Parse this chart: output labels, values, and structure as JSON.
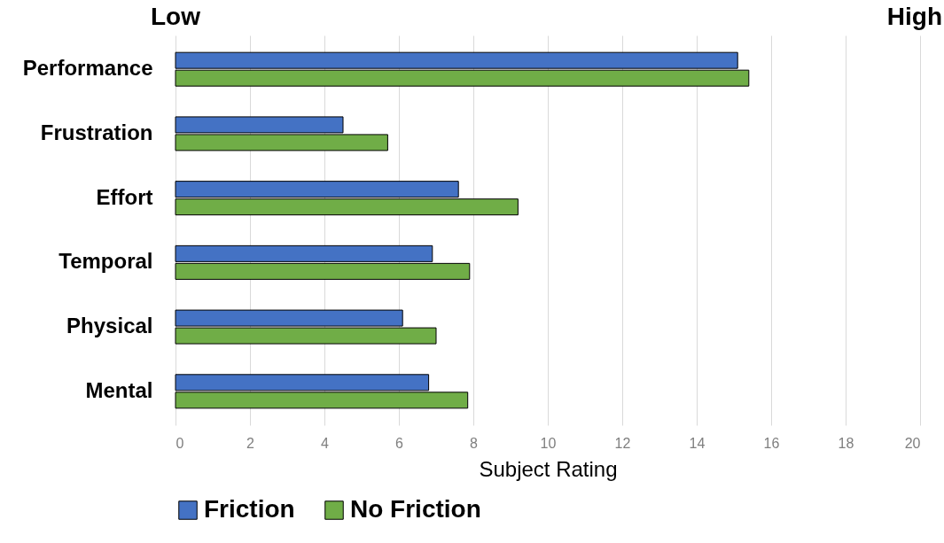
{
  "chart_data": {
    "type": "bar",
    "orientation": "horizontal",
    "xlabel": "Subject Rating",
    "categories": [
      "Performance",
      "Frustration",
      "Effort",
      "Temporal",
      "Physical",
      "Mental"
    ],
    "series": [
      {
        "name": "Friction",
        "color": "#4472c4",
        "values": [
          15.1,
          4.5,
          7.6,
          6.9,
          6.1,
          6.8
        ]
      },
      {
        "name": "No Friction",
        "color": "#70ad47",
        "values": [
          15.4,
          5.7,
          9.2,
          7.9,
          7.0,
          7.85
        ]
      }
    ],
    "xlim": [
      0,
      20
    ],
    "xticks": [
      0,
      2,
      4,
      6,
      8,
      10,
      12,
      14,
      16,
      18,
      20
    ],
    "grid": "x",
    "legend": "bottom",
    "annotations": [
      "Low",
      "High"
    ]
  }
}
